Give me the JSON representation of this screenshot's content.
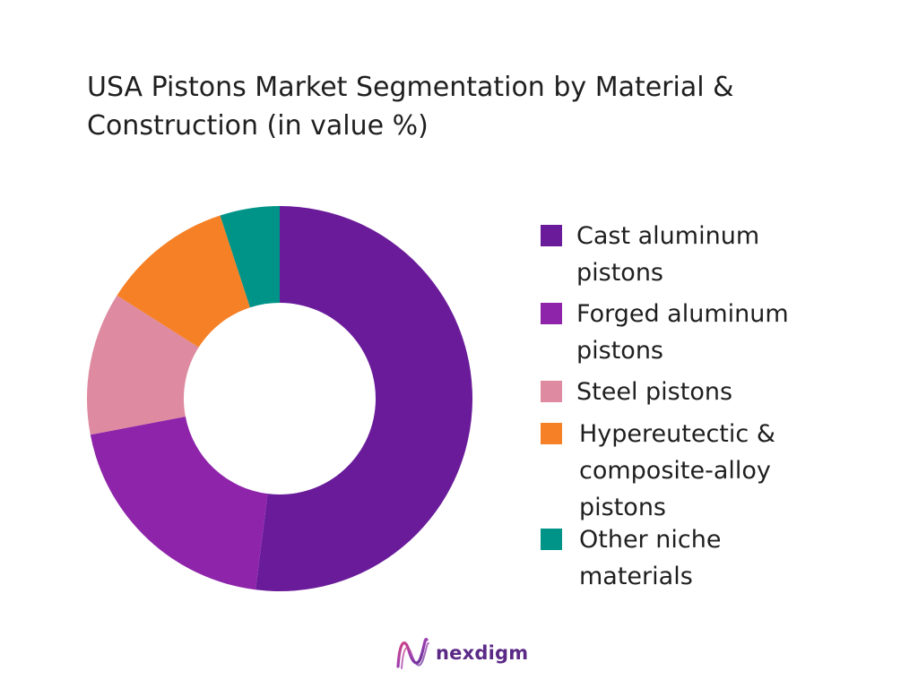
{
  "chart_data": {
    "type": "pie",
    "title": "USA Pistons Market Segmentation by Material &\nConstruction  (in value %)",
    "categories": [
      "Cast aluminum\npistons",
      "Forged aluminum\npistons",
      "Steel pistons",
      "Hypereutectic &\ncomposite-alloy\npistons",
      "Other niche\nmaterials"
    ],
    "values": [
      52,
      20,
      12,
      11,
      5
    ],
    "colors": [
      "#6a1b9a",
      "#8e24aa",
      "#de8aa0",
      "#f58025",
      "#009488"
    ],
    "legend_position": "right",
    "donut": true
  },
  "footer": {
    "brand": "nexdigm",
    "logo_icon": "nexdigm-wave-logo-icon",
    "brand_color": "#5b2a86"
  }
}
